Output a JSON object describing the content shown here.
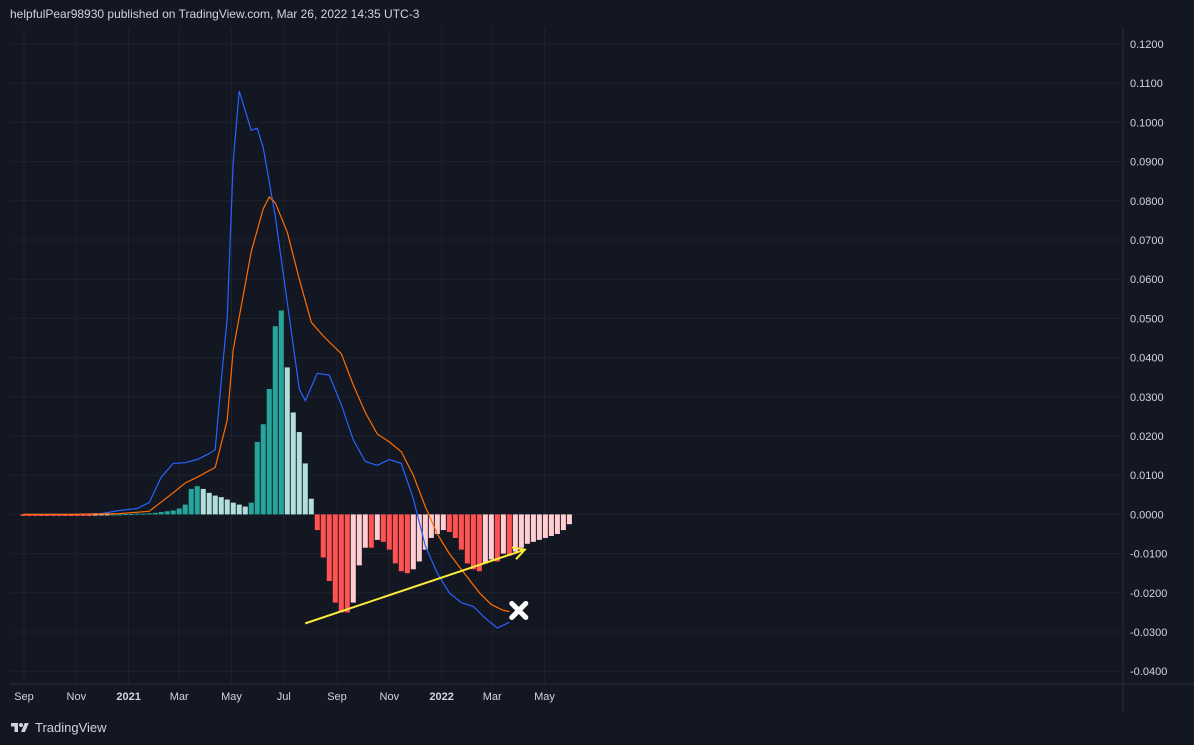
{
  "header": {
    "attribution": "helpfulPear98930 published on TradingView.com, Mar 26, 2022 14:35 UTC-3"
  },
  "footer": {
    "brand": "TradingView",
    "logo_icon": "tradingview-logo-icon"
  },
  "colors": {
    "background": "#131722",
    "grid": "#1e222d",
    "text": "#d1d4dc",
    "macd_line": "#2962ff",
    "signal_line": "#ff6d00",
    "hist_pos_strong": "#26a69a",
    "hist_pos_weak": "#b2dfdb",
    "hist_neg_strong": "#ff5252",
    "hist_neg_weak": "#ffcdd2",
    "trendline": "#ffeb3b",
    "marker": "#ffffff"
  },
  "chart_data": {
    "type": "bar",
    "ylim": [
      -0.04,
      0.12
    ],
    "y_ticks": [
      "0.1200",
      "0.1100",
      "0.1000",
      "0.0900",
      "0.0800",
      "0.0700",
      "0.0600",
      "0.0500",
      "0.0400",
      "0.0300",
      "0.0200",
      "0.0100",
      "0.0000",
      "-0.0100",
      "-0.0200",
      "-0.0300",
      "-0.0400"
    ],
    "x_ticks": [
      {
        "label": "Sep",
        "date": "2020-09-01",
        "bold": false
      },
      {
        "label": "Nov",
        "date": "2020-11-01",
        "bold": false
      },
      {
        "label": "2021",
        "date": "2021-01-01",
        "bold": true
      },
      {
        "label": "Mar",
        "date": "2021-03-01",
        "bold": false
      },
      {
        "label": "May",
        "date": "2021-05-01",
        "bold": false
      },
      {
        "label": "Jul",
        "date": "2021-07-01",
        "bold": false
      },
      {
        "label": "Sep",
        "date": "2021-09-01",
        "bold": false
      },
      {
        "label": "Nov",
        "date": "2021-11-01",
        "bold": false
      },
      {
        "label": "2022",
        "date": "2022-01-01",
        "bold": true
      },
      {
        "label": "Mar",
        "date": "2022-03-01",
        "bold": false
      },
      {
        "label": "May",
        "date": "2022-05-01",
        "bold": false
      }
    ],
    "histogram": {
      "start_date": "2020-08-31",
      "interval": "1 week",
      "values": [
        -0.0004,
        -0.0004,
        -0.0004,
        -0.0004,
        -0.0004,
        -0.0004,
        -0.0004,
        -0.0004,
        -0.0004,
        -0.0004,
        -0.0004,
        -0.0004,
        -0.0003,
        -0.0002,
        -0.0001,
        0.0,
        0.0,
        0.0001,
        0.0001,
        0.0002,
        0.0002,
        0.0003,
        0.0004,
        0.0006,
        0.0008,
        0.001,
        0.0015,
        0.0025,
        0.0065,
        0.0072,
        0.0065,
        0.0055,
        0.0048,
        0.0044,
        0.0038,
        0.003,
        0.0025,
        0.002,
        0.003,
        0.0185,
        0.023,
        0.032,
        0.048,
        0.052,
        0.0375,
        0.026,
        0.021,
        0.013,
        0.004,
        -0.004,
        -0.011,
        -0.017,
        -0.0225,
        -0.025,
        -0.025,
        -0.0225,
        -0.013,
        -0.0085,
        -0.0085,
        -0.0065,
        -0.007,
        -0.009,
        -0.0125,
        -0.0145,
        -0.015,
        -0.014,
        -0.012,
        -0.009,
        -0.006,
        -0.005,
        -0.004,
        -0.0045,
        -0.006,
        -0.009,
        -0.0125,
        -0.014,
        -0.0145,
        -0.0125,
        -0.0115,
        -0.012,
        -0.01,
        -0.0105,
        -0.0095,
        -0.0085,
        -0.0075,
        -0.007,
        -0.0065,
        -0.006,
        -0.0055,
        -0.005,
        -0.004,
        -0.0025
      ]
    },
    "series": [
      {
        "points": [
          [
            "2020-08-31",
            0.0
          ],
          [
            "2020-09-28",
            0.0
          ],
          [
            "2020-10-26",
            0.0
          ],
          [
            "2020-11-30",
            0.0002
          ],
          [
            "2020-12-21",
            0.001
          ],
          [
            "2021-01-11",
            0.0015
          ],
          [
            "2021-01-25",
            0.003
          ],
          [
            "2021-02-08",
            0.0095
          ],
          [
            "2021-02-22",
            0.013
          ],
          [
            "2021-03-08",
            0.0132
          ],
          [
            "2021-03-22",
            0.014
          ],
          [
            "2021-04-05",
            0.0155
          ],
          [
            "2021-04-12",
            0.0165
          ],
          [
            "2021-04-19",
            0.034
          ],
          [
            "2021-04-26",
            0.05
          ],
          [
            "2021-05-03",
            0.09
          ],
          [
            "2021-05-10",
            0.108
          ],
          [
            "2021-05-24",
            0.098
          ],
          [
            "2021-05-31",
            0.0985
          ],
          [
            "2021-06-07",
            0.0935
          ],
          [
            "2021-06-21",
            0.076
          ],
          [
            "2021-07-05",
            0.054
          ],
          [
            "2021-07-19",
            0.032
          ],
          [
            "2021-07-26",
            0.029
          ],
          [
            "2021-08-09",
            0.036
          ],
          [
            "2021-08-23",
            0.0355
          ],
          [
            "2021-09-06",
            0.028
          ],
          [
            "2021-09-20",
            0.019
          ],
          [
            "2021-10-04",
            0.0135
          ],
          [
            "2021-10-18",
            0.0125
          ],
          [
            "2021-11-01",
            0.014
          ],
          [
            "2021-11-15",
            0.013
          ],
          [
            "2021-11-29",
            0.004
          ],
          [
            "2021-12-13",
            -0.008
          ],
          [
            "2021-12-27",
            -0.015
          ],
          [
            "2022-01-10",
            -0.02
          ],
          [
            "2022-01-24",
            -0.0225
          ],
          [
            "2022-02-07",
            -0.0235
          ],
          [
            "2022-02-21",
            -0.0265
          ],
          [
            "2022-03-07",
            -0.029
          ],
          [
            "2022-03-21",
            -0.0275
          ]
        ]
      },
      {
        "points": [
          [
            "2020-08-31",
            0.0
          ],
          [
            "2020-10-26",
            0.0
          ],
          [
            "2020-12-21",
            0.0002
          ],
          [
            "2021-01-25",
            0.0008
          ],
          [
            "2021-02-22",
            0.0055
          ],
          [
            "2021-03-08",
            0.008
          ],
          [
            "2021-03-22",
            0.0095
          ],
          [
            "2021-04-12",
            0.012
          ],
          [
            "2021-04-26",
            0.024
          ],
          [
            "2021-05-03",
            0.042
          ],
          [
            "2021-05-24",
            0.067
          ],
          [
            "2021-06-07",
            0.078
          ],
          [
            "2021-06-14",
            0.081
          ],
          [
            "2021-06-21",
            0.0795
          ],
          [
            "2021-07-05",
            0.072
          ],
          [
            "2021-07-19",
            0.06
          ],
          [
            "2021-08-02",
            0.049
          ],
          [
            "2021-08-16",
            0.0455
          ],
          [
            "2021-09-06",
            0.041
          ],
          [
            "2021-09-20",
            0.033
          ],
          [
            "2021-10-04",
            0.026
          ],
          [
            "2021-10-18",
            0.0205
          ],
          [
            "2021-11-01",
            0.0185
          ],
          [
            "2021-11-15",
            0.016
          ],
          [
            "2021-11-29",
            0.01
          ],
          [
            "2021-12-13",
            0.002
          ],
          [
            "2021-12-27",
            -0.005
          ],
          [
            "2022-01-10",
            -0.01
          ],
          [
            "2022-01-31",
            -0.016
          ],
          [
            "2022-02-14",
            -0.02
          ],
          [
            "2022-02-28",
            -0.023
          ],
          [
            "2022-03-14",
            -0.0245
          ],
          [
            "2022-03-21",
            -0.0248
          ]
        ]
      }
    ],
    "annotations": [
      {
        "type": "trendline-arrow",
        "from": [
          "2021-07-26",
          -0.0278
        ],
        "to": [
          "2022-04-08",
          -0.009
        ]
      },
      {
        "type": "x-marker",
        "at": [
          "2022-04-01",
          -0.0245
        ]
      }
    ]
  }
}
